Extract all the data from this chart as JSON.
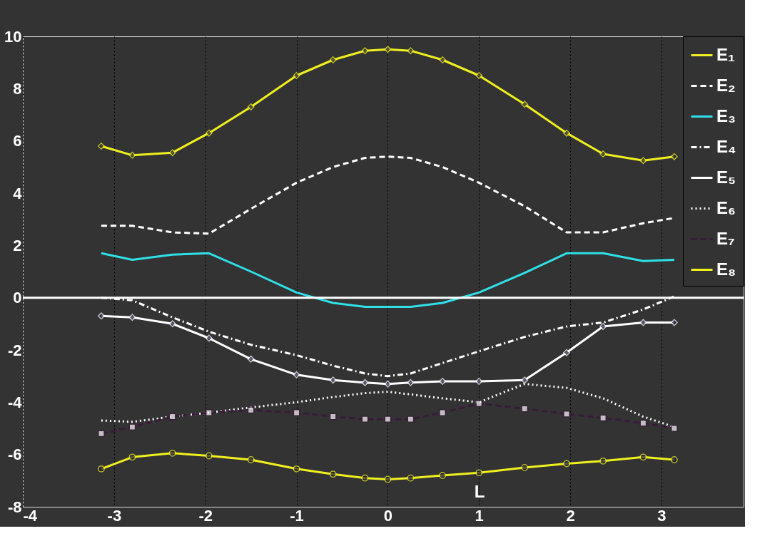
{
  "chart_data": {
    "type": "line",
    "x": [
      -3.14,
      -2.8,
      -2.36,
      -1.96,
      -1.5,
      -1.0,
      -0.6,
      -0.25,
      0,
      0.25,
      0.6,
      1.0,
      1.5,
      1.96,
      2.36,
      2.8,
      3.14
    ],
    "xlim": [
      -4,
      3.9
    ],
    "xticks": [
      -4,
      -3,
      -2,
      -1,
      0,
      1,
      2,
      3
    ],
    "ylim": [
      -8,
      10
    ],
    "yticks": [
      -8,
      -6,
      -4,
      -2,
      0,
      2,
      4,
      6,
      8,
      10
    ],
    "grid": "x",
    "legend": "top right",
    "series": [
      {
        "name": "E₁",
        "color": "#f0f020",
        "line_style": "solid",
        "marker": "diamond",
        "values": [
          5.8,
          5.45,
          5.55,
          6.3,
          7.3,
          8.5,
          9.1,
          9.45,
          9.5,
          9.45,
          9.1,
          8.5,
          7.4,
          6.3,
          5.5,
          5.25,
          5.4
        ]
      },
      {
        "name": "E₂",
        "color": "#ffffff",
        "line_style": "dashed",
        "values": [
          2.75,
          2.75,
          2.5,
          2.45,
          3.4,
          4.4,
          5.0,
          5.35,
          5.4,
          5.35,
          5.0,
          4.4,
          3.5,
          2.5,
          2.5,
          2.85,
          3.05
        ]
      },
      {
        "name": "E₃",
        "color": "#30e0e8",
        "line_style": "solid",
        "values": [
          1.7,
          1.45,
          1.65,
          1.7,
          1.0,
          0.2,
          -0.2,
          -0.35,
          -0.35,
          -0.35,
          -0.2,
          0.2,
          0.95,
          1.7,
          1.7,
          1.4,
          1.45
        ]
      },
      {
        "name": "E₄",
        "color": "#ffffff",
        "line_style": "dashdot",
        "values": [
          0.0,
          -0.1,
          -0.75,
          -1.3,
          -1.8,
          -2.2,
          -2.6,
          -2.9,
          -3.0,
          -2.9,
          -2.5,
          -2.05,
          -1.5,
          -1.1,
          -0.95,
          -0.45,
          0.05
        ]
      },
      {
        "name": "E₅",
        "color": "#ffffff",
        "line_style": "solid",
        "marker": "diamond",
        "values": [
          -0.7,
          -0.75,
          -1.0,
          -1.55,
          -2.35,
          -2.95,
          -3.15,
          -3.25,
          -3.3,
          -3.25,
          -3.2,
          -3.2,
          -3.15,
          -2.1,
          -1.1,
          -0.95,
          -0.95
        ]
      },
      {
        "name": "E₆",
        "color": "#ffffff",
        "line_style": "dotted",
        "values": [
          -4.7,
          -4.75,
          -4.55,
          -4.4,
          -4.2,
          -4.0,
          -3.8,
          -3.65,
          -3.6,
          -3.7,
          -3.85,
          -4.0,
          -3.3,
          -3.45,
          -3.85,
          -4.55,
          -4.95
        ]
      },
      {
        "name": "E₇",
        "color": "#3a1a3a",
        "line_style": "dashed",
        "marker": "square",
        "values": [
          -5.2,
          -4.95,
          -4.55,
          -4.4,
          -4.3,
          -4.4,
          -4.55,
          -4.65,
          -4.65,
          -4.65,
          -4.4,
          -4.05,
          -4.25,
          -4.45,
          -4.6,
          -4.8,
          -5.0
        ]
      },
      {
        "name": "E₈",
        "color": "#f0f020",
        "line_style": "solid",
        "marker": "circle",
        "values": [
          -6.55,
          -6.1,
          -5.95,
          -6.05,
          -6.2,
          -6.55,
          -6.75,
          -6.9,
          -6.95,
          -6.9,
          -6.8,
          -6.7,
          -6.5,
          -6.35,
          -6.25,
          -6.1,
          -6.2
        ]
      }
    ],
    "ref_lines": [
      {
        "axis": "y",
        "value": 0,
        "label": null,
        "color": "#ffffff"
      }
    ],
    "annotations": [
      "L"
    ]
  }
}
